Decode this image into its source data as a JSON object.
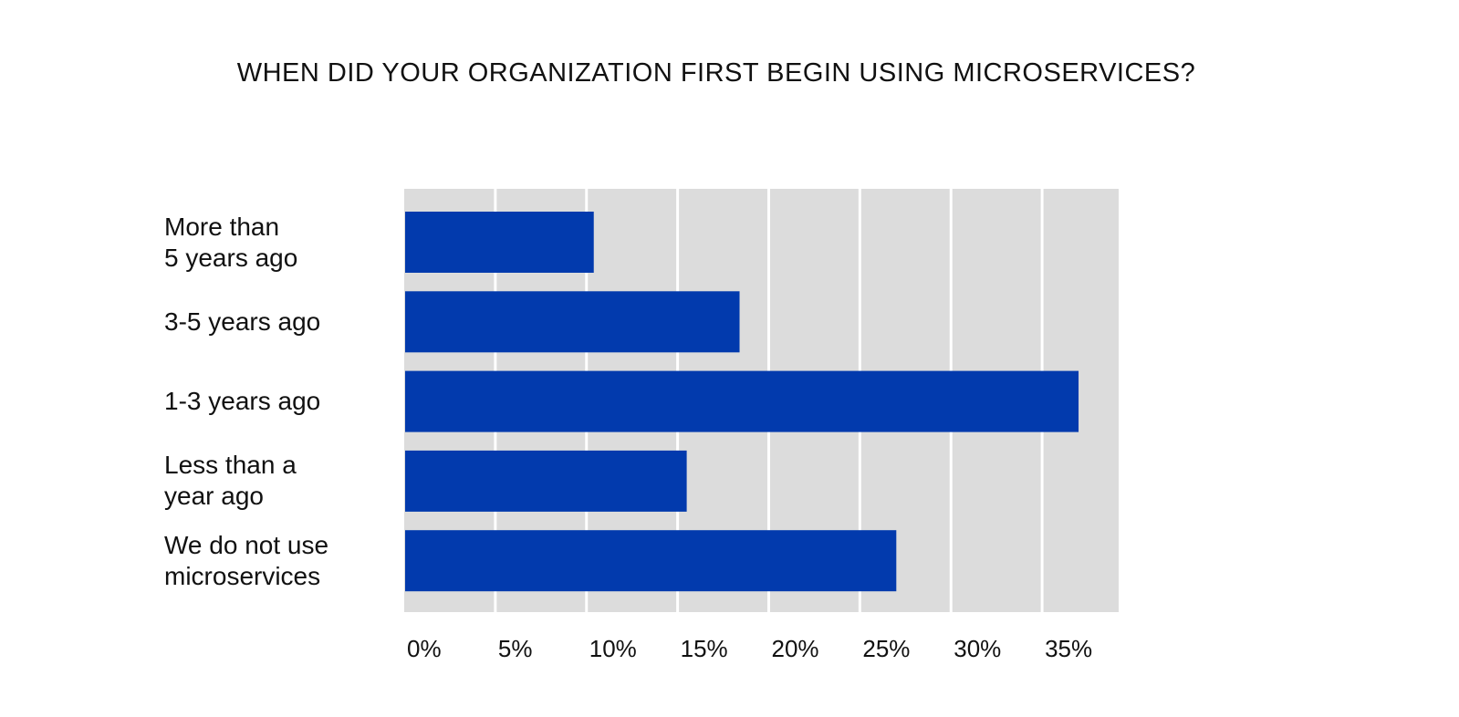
{
  "chart_data": {
    "type": "bar",
    "orientation": "horizontal",
    "title": "WHEN DID YOUR ORGANIZATION FIRST BEGIN USING MICROSERVICES?",
    "categories": [
      "More than\n5 years ago",
      "3-5 years ago",
      "1-3 years ago",
      "Less than a\nyear ago",
      "We do not use\nmicroservices"
    ],
    "values": [
      10.4,
      18.4,
      37.0,
      15.5,
      27.0
    ],
    "xlim": [
      0,
      39.2
    ],
    "x_ticks": [
      0,
      5,
      10,
      15,
      20,
      25,
      30,
      35
    ],
    "x_tick_labels": [
      "0%",
      "5%",
      "10%",
      "15%",
      "20%",
      "25%",
      "30%",
      "35%"
    ],
    "xlabel": "",
    "ylabel": "",
    "grid": true,
    "legend": "none",
    "colors": {
      "bar": "#023aad",
      "plot_background": "#dcdcdc",
      "grid": "#ffffff"
    }
  }
}
